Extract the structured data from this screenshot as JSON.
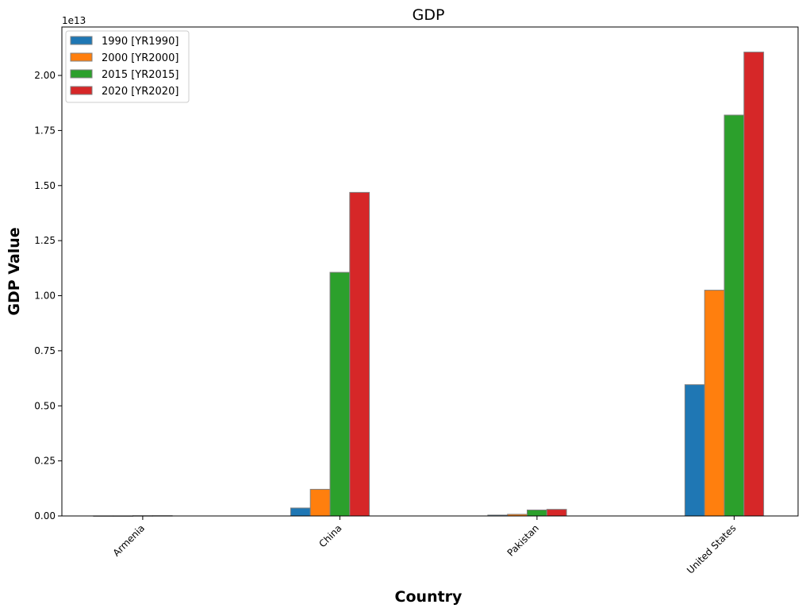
{
  "chart_data": {
    "type": "bar",
    "title": "GDP",
    "xlabel": "Country",
    "ylabel": "GDP Value",
    "y_offset_label": "1e13",
    "categories": [
      "Armenia",
      "China",
      "Pakistan",
      "United States"
    ],
    "series": [
      {
        "name": "1990 [YR1990]",
        "color": "#1f77b4",
        "values": [
          2257000000.0,
          361000000000.0,
          40000000000.0,
          5960000000000.0
        ]
      },
      {
        "name": "2000 [YR2000]",
        "color": "#ff7f0e",
        "values": [
          1912000000.0,
          1210000000000.0,
          74000000000.0,
          10250000000000.0
        ]
      },
      {
        "name": "2015 [YR2015]",
        "color": "#2ca02c",
        "values": [
          10550000000.0,
          11060000000000.0,
          270000000000.0,
          18200000000000.0
        ]
      },
      {
        "name": "2020 [YR2020]",
        "color": "#d62728",
        "values": [
          12640000000.0,
          14690000000000.0,
          300000000000.0,
          21060000000000.0
        ]
      }
    ],
    "ylim": [
      0,
      22200000000000.0
    ],
    "yticks": [
      0,
      0.25,
      0.5,
      0.75,
      1.0,
      1.25,
      1.5,
      1.75,
      2.0
    ],
    "ytick_labels": [
      "0.00",
      "0.25",
      "0.50",
      "0.75",
      "1.00",
      "1.25",
      "1.50",
      "1.75",
      "2.00"
    ],
    "y_scale": 10000000000000.0,
    "grid": false,
    "legend_position": "top-left"
  }
}
